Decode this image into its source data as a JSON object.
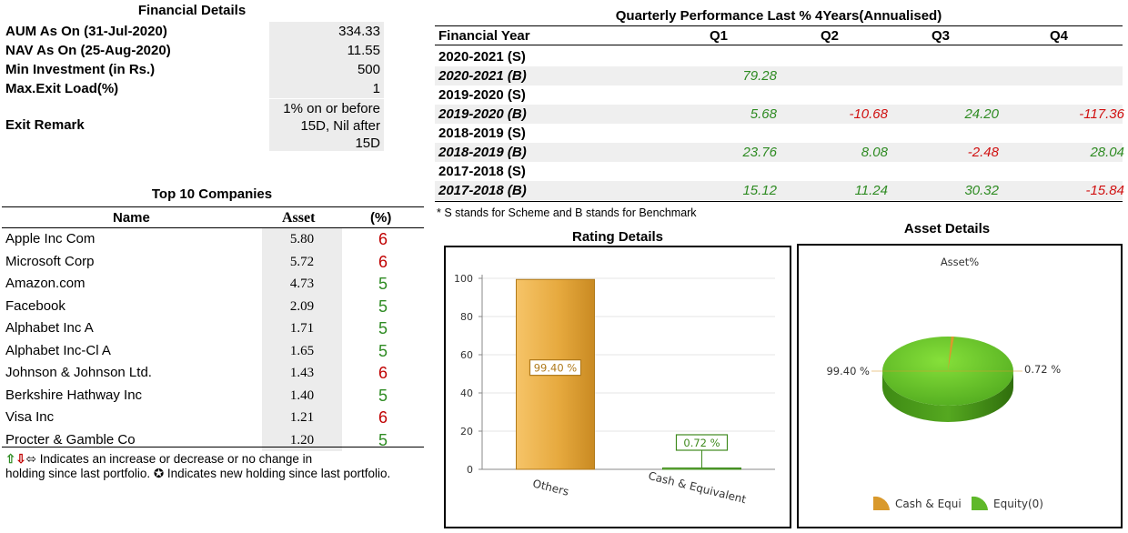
{
  "financial_details": {
    "title": "Financial Details",
    "rows": [
      {
        "label": "AUM As On (31-Jul-2020)",
        "value": "334.33"
      },
      {
        "label": "NAV As On (25-Aug-2020)",
        "value": "11.55"
      },
      {
        "label": "Min Investment (in Rs.)",
        "value": "500"
      },
      {
        "label": "Max.Exit Load(%)",
        "value": "1"
      }
    ],
    "exit_remark_label": "Exit Remark",
    "exit_remark_lines": [
      "1% on or before",
      "15D, Nil after",
      "15D"
    ]
  },
  "top10": {
    "title": "Top 10 Companies",
    "headers": {
      "name": "Name",
      "asset": "Asset",
      "pct": "(%)"
    },
    "rows": [
      {
        "name": "Apple Inc Com",
        "asset": "5.80",
        "pct": "6"
      },
      {
        "name": "Microsoft Corp",
        "asset": "5.72",
        "pct": "6"
      },
      {
        "name": "Amazon.com",
        "asset": "4.73",
        "pct": "5"
      },
      {
        "name": "Facebook",
        "asset": "2.09",
        "pct": "5"
      },
      {
        "name": "Alphabet Inc A",
        "asset": "1.71",
        "pct": "5"
      },
      {
        "name": "Alphabet Inc-Cl A",
        "asset": "1.65",
        "pct": "5"
      },
      {
        "name": "Johnson & Johnson Ltd.",
        "asset": "1.43",
        "pct": "6"
      },
      {
        "name": "Berkshire Hathway Inc",
        "asset": "1.40",
        "pct": "5"
      },
      {
        "name": "Visa Inc",
        "asset": "1.21",
        "pct": "6"
      },
      {
        "name": "Procter & Gamble Co",
        "asset": "1.20",
        "pct": "5"
      }
    ],
    "pct_colors": {
      "6": "#c00000",
      "5": "#2e8b22"
    },
    "note_line1": " Indicates an increase or decrease or no change in",
    "note_line2a": "holding since last portfolio. ",
    "note_line2b": " Indicates new holding since last portfolio."
  },
  "quarterly": {
    "title": "Quarterly Performance Last % 4Years(Annualised)",
    "headers": [
      "Financial Year",
      "Q1",
      "Q2",
      "Q3",
      "Q4"
    ],
    "rows": [
      {
        "year": "2020-2021 (S)",
        "q1": "",
        "q2": "",
        "q3": "",
        "q4": ""
      },
      {
        "year": "2020-2021 (B)",
        "q1": "79.28",
        "q2": "",
        "q3": "",
        "q4": ""
      },
      {
        "year": "2019-2020 (S)",
        "q1": "",
        "q2": "",
        "q3": "",
        "q4": ""
      },
      {
        "year": "2019-2020 (B)",
        "q1": "5.68",
        "q2": "-10.68",
        "q3": "24.20",
        "q4": "-117.36"
      },
      {
        "year": "2018-2019 (S)",
        "q1": "",
        "q2": "",
        "q3": "",
        "q4": ""
      },
      {
        "year": "2018-2019 (B)",
        "q1": "23.76",
        "q2": "8.08",
        "q3": "-2.48",
        "q4": "28.04"
      },
      {
        "year": "2017-2018 (S)",
        "q1": "",
        "q2": "",
        "q3": "",
        "q4": ""
      },
      {
        "year": "2017-2018 (B)",
        "q1": "15.12",
        "q2": "11.24",
        "q3": "30.32",
        "q4": "-15.84"
      }
    ],
    "note": "* S stands for Scheme  and  B stands for Benchmark",
    "positive_color": "#2e8b22",
    "negative_color": "#d01010"
  },
  "chart_data": [
    {
      "type": "bar",
      "title": "Rating Details",
      "categories": [
        "Others",
        "Cash & Equivalent"
      ],
      "values": [
        99.4,
        0.72
      ],
      "data_labels": [
        "99.40 %",
        "0.72 %"
      ],
      "yticks": [
        "0",
        "20",
        "40",
        "60",
        "80",
        "100"
      ],
      "ylim": [
        0,
        100
      ],
      "grid": true,
      "colors": [
        "#e6a93e",
        "#5fa83a"
      ]
    },
    {
      "type": "pie",
      "title": "Asset Details",
      "subtitle": "Asset%",
      "labels": [
        "Equity(0)",
        "Cash & Equi"
      ],
      "values": [
        99.4,
        0.72
      ],
      "data_labels": [
        "99.40 %",
        "0.72 %"
      ],
      "legend": [
        "Cash & Equi",
        "Equity(0)"
      ],
      "legend_placement": "bottom",
      "colors": [
        "#5fb82a",
        "#d9992c"
      ]
    }
  ]
}
